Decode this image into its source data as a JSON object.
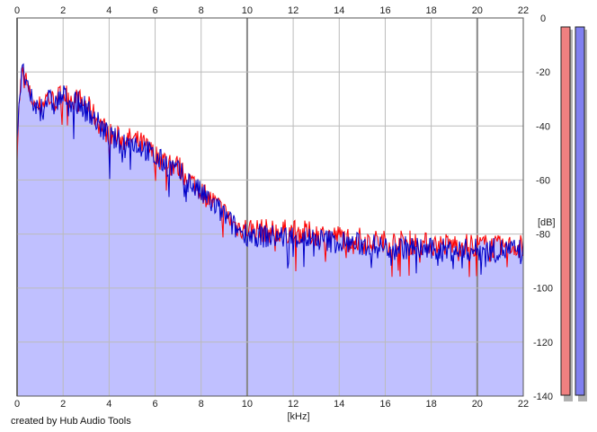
{
  "credit": "created by Hub Audio Tools",
  "chart_data": {
    "type": "area",
    "xlabel": "[kHz]",
    "ylabel": "[dB]",
    "xlim": [
      0,
      22
    ],
    "ylim": [
      -140,
      0
    ],
    "x_ticks": [
      0,
      2,
      4,
      6,
      8,
      10,
      12,
      14,
      16,
      18,
      20,
      22
    ],
    "y_ticks": [
      0,
      -20,
      -40,
      -60,
      -80,
      -100,
      -120,
      -140
    ],
    "grid": true,
    "colors": {
      "fill": "#c0c0ff",
      "left": "#ff0000",
      "right": "#0000c8",
      "grid": "#bbbbbb",
      "major_grid": "#888888"
    },
    "series": [
      {
        "channel": "left",
        "x": [
          0.0,
          0.1,
          0.2,
          0.3,
          0.5,
          0.8,
          1.0,
          1.3,
          1.6,
          2.0,
          2.5,
          3.0,
          3.5,
          4.0,
          4.5,
          5.0,
          5.5,
          6.0,
          6.5,
          7.0,
          7.5,
          8.0,
          8.5,
          9.0,
          9.5,
          10.0,
          11.0,
          12.0,
          13.0,
          14.0,
          15.0,
          16.0,
          17.0,
          18.0,
          19.0,
          20.0,
          21.0,
          22.0
        ],
        "values": [
          -48,
          -30,
          -22,
          -19,
          -28,
          -32,
          -33,
          -29,
          -31,
          -28,
          -30,
          -32,
          -38,
          -43,
          -45,
          -45,
          -47,
          -51,
          -53,
          -55,
          -60,
          -64,
          -68,
          -72,
          -77,
          -78,
          -79,
          -79,
          -80,
          -81,
          -82,
          -83,
          -83,
          -84,
          -84,
          -84,
          -85,
          -84
        ]
      },
      {
        "channel": "right",
        "x": [
          0.0,
          0.1,
          0.2,
          0.3,
          0.5,
          0.8,
          1.0,
          1.3,
          1.6,
          2.0,
          2.5,
          3.0,
          3.5,
          4.0,
          4.5,
          5.0,
          5.5,
          6.0,
          6.5,
          7.0,
          7.5,
          8.0,
          8.5,
          9.0,
          9.5,
          10.0,
          11.0,
          12.0,
          13.0,
          14.0,
          15.0,
          16.0,
          17.0,
          18.0,
          19.0,
          20.0,
          21.0,
          22.0
        ],
        "values": [
          -44,
          -28,
          -22,
          -20,
          -29,
          -33,
          -34,
          -30,
          -32,
          -29,
          -31,
          -33,
          -39,
          -44,
          -46,
          -46,
          -48,
          -52,
          -54,
          -57,
          -61,
          -65,
          -69,
          -73,
          -78,
          -80,
          -81,
          -81,
          -82,
          -83,
          -84,
          -85,
          -85,
          -86,
          -86,
          -86,
          -86,
          -86
        ]
      }
    ],
    "meters": [
      {
        "channel": "left",
        "color": "#f08080"
      },
      {
        "channel": "right",
        "color": "#8080f0"
      }
    ]
  }
}
